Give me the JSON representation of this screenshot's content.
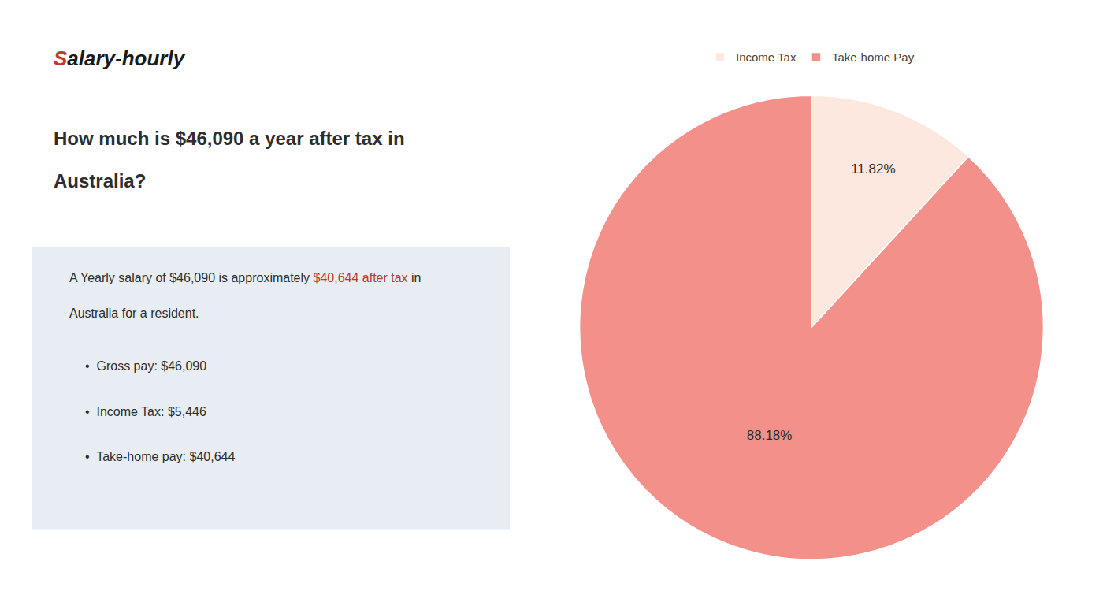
{
  "chart_data": {
    "type": "pie",
    "title": [
      "How much is $46,090 a year after tax in",
      "Australia?"
    ],
    "categories": [
      "Income Tax",
      "Take-home Pay"
    ],
    "values": [
      11.82,
      88.18
    ],
    "value_labels": [
      "11.82%",
      "88.18%"
    ],
    "colors": [
      "#fce8df",
      "#f4908a"
    ],
    "data_labels": true,
    "legend": "top",
    "annotations": [
      [
        {
          "text": "S",
          "color": "#c0392b"
        },
        {
          "text": "alary-hourly",
          "color": "#1a1a1a"
        }
      ],
      [
        {
          "text": "A Yearly salary of $46,090 is approximately ",
          "color": "#2d2d2d"
        },
        {
          "text": "$40,644 after tax",
          "color": "#c0392b"
        },
        {
          "text": " in",
          "color": "#2d2d2d"
        }
      ],
      [
        {
          "text": "Australia for a resident.",
          "color": "#2d2d2d"
        }
      ],
      [
        {
          "text": "•  Gross pay: $46,090",
          "color": "#2d2d2d"
        }
      ],
      [
        {
          "text": "•  Income Tax: $5,446",
          "color": "#2d2d2d"
        }
      ],
      [
        {
          "text": "•  Take-home pay: $40,644",
          "color": "#2d2d2d"
        }
      ]
    ]
  }
}
